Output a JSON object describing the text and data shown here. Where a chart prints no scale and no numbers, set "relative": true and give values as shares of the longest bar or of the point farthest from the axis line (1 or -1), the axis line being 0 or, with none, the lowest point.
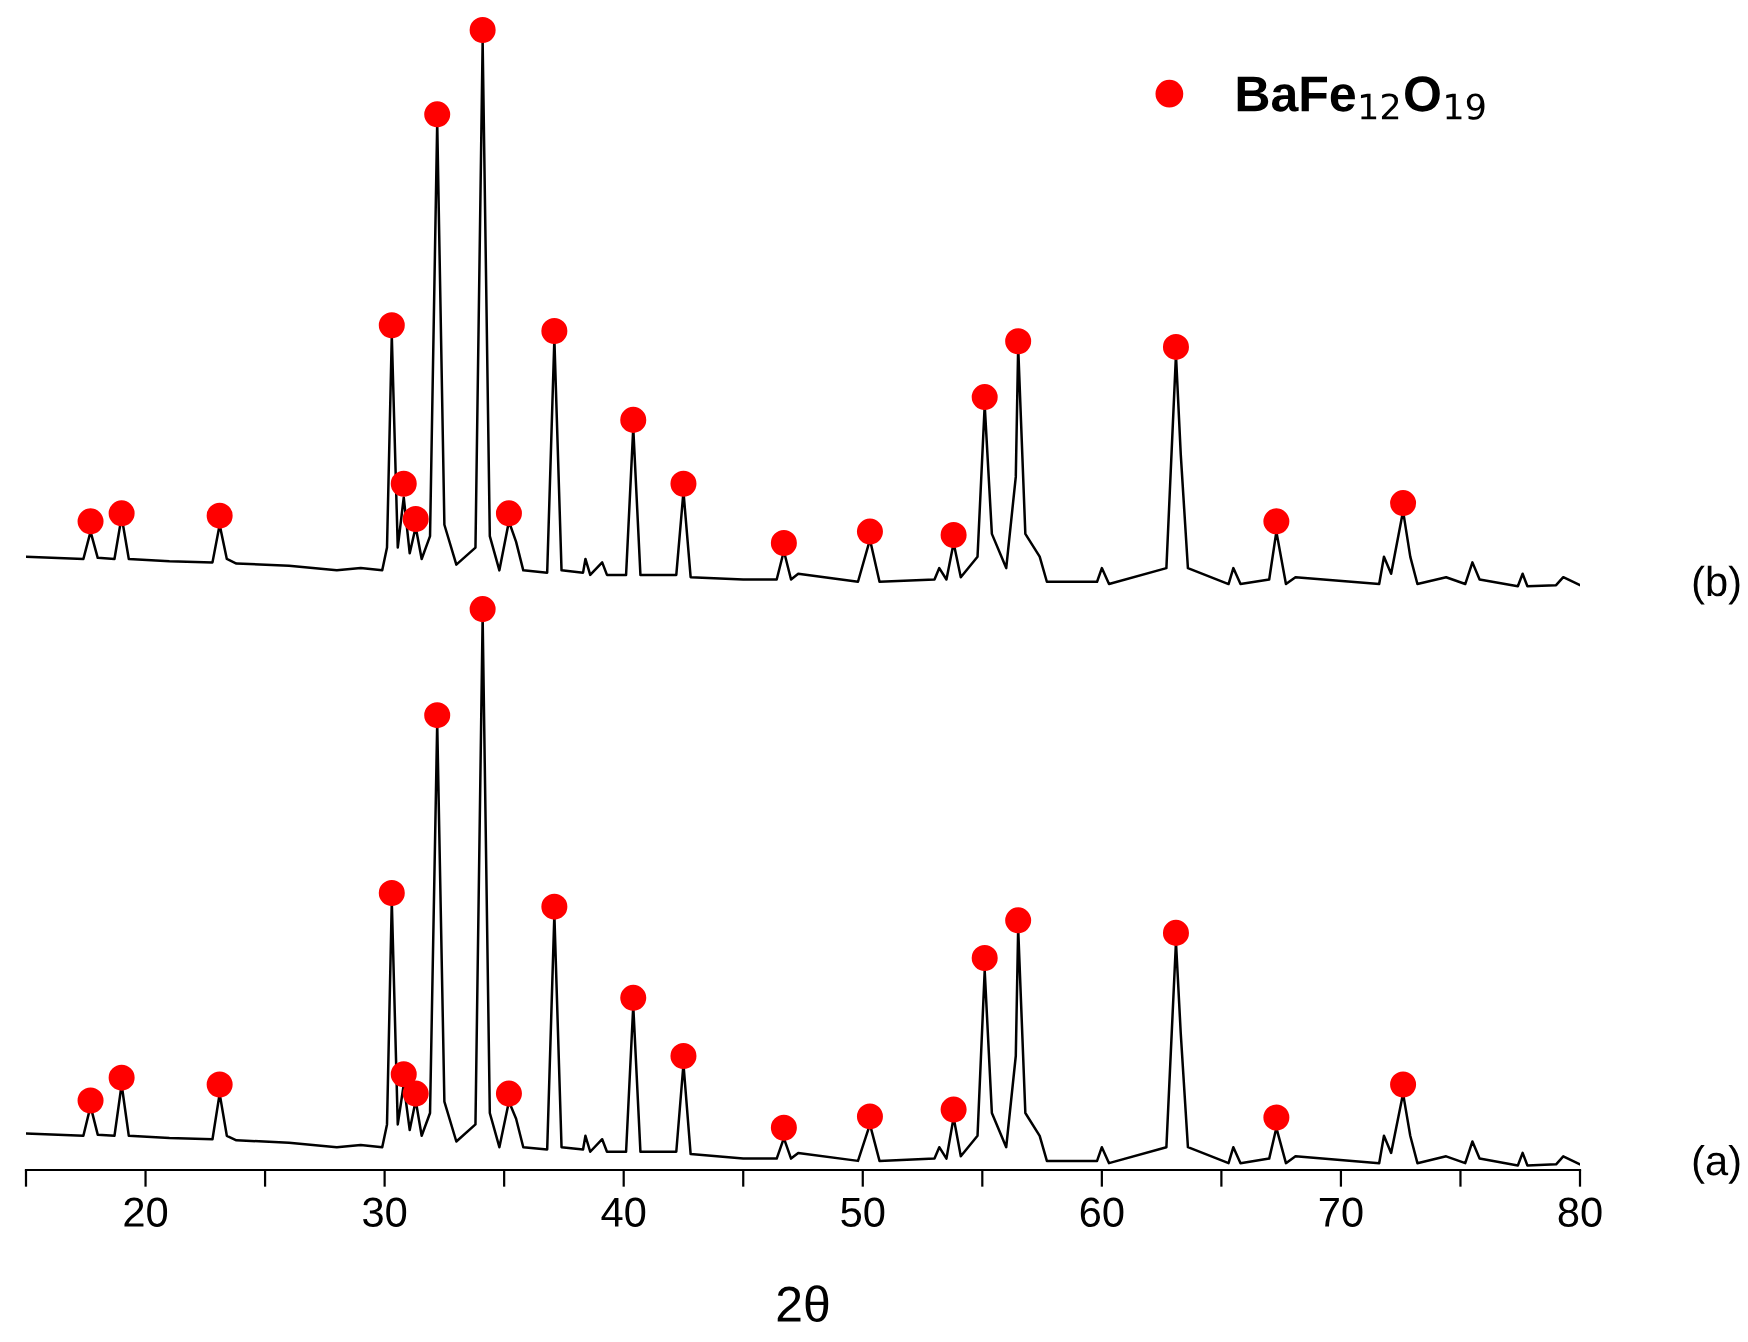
{
  "chart_data": {
    "type": "line",
    "xlabel": "2θ",
    "relative": true,
    "xlim": [
      15,
      80
    ],
    "xticks": [
      {
        "value": 15,
        "label": null
      },
      20,
      {
        "value": 25,
        "label": null
      },
      30,
      {
        "value": 35,
        "label": null
      },
      40,
      {
        "value": 45,
        "label": null
      },
      50,
      {
        "value": 55,
        "label": null
      },
      60,
      {
        "value": 65,
        "label": null
      },
      70,
      {
        "value": 75,
        "label": null
      },
      80
    ],
    "tick_labels": "x",
    "grid": false,
    "legend": "top right",
    "series": [
      {
        "name": "(a)",
        "color": "#000000",
        "marker": "none",
        "x": [
          15,
          17.4,
          17.7,
          18.0,
          18.7,
          19.0,
          19.3,
          21,
          22.8,
          23.1,
          23.4,
          23.8,
          26,
          28,
          29,
          29.9,
          30.1,
          30.3,
          30.55,
          30.8,
          31.05,
          31.3,
          31.55,
          31.9,
          32.2,
          32.5,
          33.0,
          33.8,
          34.1,
          34.4,
          34.8,
          35.2,
          35.5,
          35.8,
          36.8,
          37.1,
          37.4,
          38.3,
          38.4,
          38.6,
          39.1,
          39.3,
          40.1,
          40.4,
          40.7,
          42.2,
          42.5,
          42.8,
          45,
          46.4,
          46.7,
          47.0,
          47.3,
          49.8,
          50.3,
          50.7,
          53.0,
          53.2,
          53.5,
          53.8,
          54.1,
          54.8,
          55.1,
          55.4,
          56.0,
          56.4,
          56.5,
          56.8,
          57.4,
          57.7,
          59.8,
          60.0,
          60.3,
          62.7,
          63.1,
          63.3,
          63.6,
          65.3,
          65.5,
          65.8,
          67.0,
          67.3,
          67.7,
          68.1,
          71.6,
          71.8,
          72.1,
          72.6,
          72.9,
          73.2,
          74.4,
          75.2,
          75.5,
          75.8,
          77.4,
          77.6,
          77.8,
          79.0,
          79.3,
          80
        ],
        "values": [
          0.032,
          0.03,
          0.056,
          0.031,
          0.03,
          0.075,
          0.03,
          0.028,
          0.027,
          0.067,
          0.03,
          0.026,
          0.024,
          0.02,
          0.022,
          0.02,
          0.04,
          0.236,
          0.04,
          0.075,
          0.035,
          0.061,
          0.03,
          0.05,
          0.392,
          0.06,
          0.025,
          0.04,
          0.485,
          0.05,
          0.02,
          0.06,
          0.045,
          0.02,
          0.018,
          0.224,
          0.02,
          0.018,
          0.03,
          0.016,
          0.027,
          0.016,
          0.016,
          0.144,
          0.016,
          0.016,
          0.093,
          0.014,
          0.01,
          0.01,
          0.028,
          0.01,
          0.015,
          0.008,
          0.04,
          0.008,
          0.01,
          0.02,
          0.01,
          0.046,
          0.012,
          0.03,
          0.175,
          0.05,
          0.02,
          0.1,
          0.212,
          0.05,
          0.03,
          0.008,
          0.008,
          0.02,
          0.006,
          0.02,
          0.2,
          0.12,
          0.02,
          0.006,
          0.02,
          0.006,
          0.01,
          0.037,
          0.006,
          0.012,
          0.006,
          0.03,
          0.015,
          0.067,
          0.03,
          0.006,
          0.012,
          0.006,
          0.025,
          0.01,
          0.004,
          0.015,
          0.004,
          0.005,
          0.012,
          0.005
        ]
      },
      {
        "name": "(b)",
        "color": "#000000",
        "marker": "none",
        "x": [
          15,
          17.4,
          17.7,
          18.0,
          18.7,
          19.0,
          19.3,
          21,
          22.8,
          23.1,
          23.4,
          23.8,
          26,
          28,
          29,
          29.9,
          30.1,
          30.3,
          30.55,
          30.8,
          31.05,
          31.3,
          31.55,
          31.9,
          32.2,
          32.5,
          33.0,
          33.8,
          34.1,
          34.4,
          34.8,
          35.2,
          35.5,
          35.8,
          36.8,
          37.1,
          37.4,
          38.3,
          38.4,
          38.6,
          39.1,
          39.3,
          40.1,
          40.4,
          40.7,
          42.2,
          42.5,
          42.8,
          45,
          46.4,
          46.7,
          47.0,
          47.3,
          49.8,
          50.3,
          50.7,
          53.0,
          53.2,
          53.5,
          53.8,
          54.1,
          54.8,
          55.1,
          55.4,
          56.0,
          56.4,
          56.5,
          56.8,
          57.4,
          57.7,
          59.8,
          60.0,
          60.3,
          62.7,
          63.1,
          63.3,
          63.6,
          65.3,
          65.5,
          65.8,
          67.0,
          67.3,
          67.7,
          68.1,
          71.6,
          71.8,
          72.1,
          72.6,
          72.9,
          73.2,
          74.4,
          75.2,
          75.5,
          75.8,
          77.4,
          77.6,
          77.8,
          79.0,
          79.3,
          80
        ],
        "values": [
          0.538,
          0.536,
          0.56,
          0.537,
          0.536,
          0.573,
          0.536,
          0.534,
          0.533,
          0.566,
          0.536,
          0.532,
          0.53,
          0.526,
          0.528,
          0.526,
          0.546,
          0.732,
          0.546,
          0.59,
          0.541,
          0.564,
          0.536,
          0.556,
          0.919,
          0.566,
          0.531,
          0.546,
          0.99,
          0.556,
          0.526,
          0.569,
          0.551,
          0.526,
          0.524,
          0.729,
          0.526,
          0.524,
          0.536,
          0.522,
          0.533,
          0.522,
          0.522,
          0.651,
          0.522,
          0.522,
          0.595,
          0.52,
          0.518,
          0.518,
          0.543,
          0.518,
          0.523,
          0.516,
          0.553,
          0.516,
          0.518,
          0.528,
          0.518,
          0.55,
          0.52,
          0.538,
          0.671,
          0.558,
          0.528,
          0.608,
          0.722,
          0.558,
          0.538,
          0.516,
          0.516,
          0.528,
          0.514,
          0.528,
          0.715,
          0.628,
          0.528,
          0.514,
          0.528,
          0.514,
          0.518,
          0.56,
          0.514,
          0.52,
          0.514,
          0.538,
          0.523,
          0.578,
          0.538,
          0.514,
          0.52,
          0.514,
          0.533,
          0.518,
          0.512,
          0.523,
          0.512,
          0.513,
          0.52,
          0.513
        ]
      },
      {
        "name": "BaFe$_{12}$O$_{19}$",
        "type": "scatter",
        "color": "#ff0000",
        "marker": "circle",
        "x": [
          17.7,
          19.0,
          23.1,
          30.3,
          30.8,
          31.3,
          32.2,
          34.1,
          35.2,
          37.1,
          40.4,
          42.5,
          46.7,
          50.3,
          53.8,
          55.1,
          56.5,
          63.1,
          67.3,
          72.6,
          17.7,
          19.0,
          23.1,
          30.3,
          30.8,
          31.3,
          32.2,
          34.1,
          35.2,
          37.1,
          40.4,
          42.5,
          46.7,
          50.3,
          53.8,
          55.1,
          56.5,
          63.1,
          67.3,
          72.6
        ],
        "values": [
          0.061,
          0.081,
          0.075,
          0.243,
          0.084,
          0.067,
          0.399,
          0.492,
          0.067,
          0.231,
          0.151,
          0.1,
          0.037,
          0.047,
          0.053,
          0.186,
          0.219,
          0.208,
          0.046,
          0.075,
          0.569,
          0.576,
          0.574,
          0.741,
          0.602,
          0.571,
          0.926,
          1.0,
          0.576,
          0.736,
          0.658,
          0.602,
          0.55,
          0.56,
          0.557,
          0.678,
          0.727,
          0.722,
          0.569,
          0.585
        ]
      }
    ]
  }
}
